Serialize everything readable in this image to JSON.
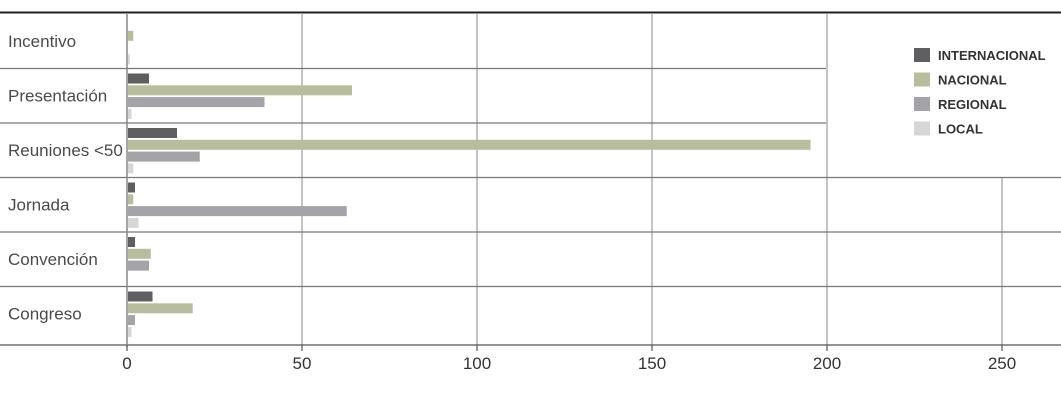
{
  "chart_data": {
    "type": "bar",
    "orientation": "horizontal",
    "categories": [
      "Incentivo",
      "Presentación",
      "Reuniones <50",
      "Jornada",
      "Convención",
      "Congreso"
    ],
    "series": [
      {
        "name": "INTERNACIONAL",
        "color": "#5f5f61",
        "values": [
          0,
          6,
          14,
          2,
          2,
          7
        ]
      },
      {
        "name": "NACIONAL",
        "color": "#b9bda0",
        "values": [
          1.5,
          64,
          195,
          1.5,
          6.5,
          18.5
        ]
      },
      {
        "name": "REGIONAL",
        "color": "#a4a4a8",
        "values": [
          0,
          39,
          20.5,
          62.5,
          6,
          2
        ]
      },
      {
        "name": "LOCAL",
        "color": "#d6d6d8",
        "values": [
          0.5,
          1,
          1.5,
          3,
          0,
          1
        ]
      }
    ],
    "xticks": [
      "0",
      "50",
      "100",
      "150",
      "200",
      "250"
    ],
    "xlim": [
      0,
      265
    ],
    "grid": true,
    "legend_position": "top-right",
    "title": "",
    "xlabel": "",
    "ylabel": ""
  }
}
